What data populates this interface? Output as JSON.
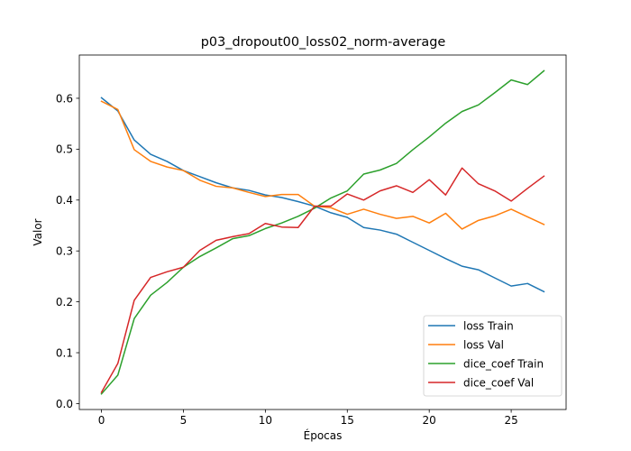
{
  "chart_data": {
    "type": "line",
    "title": "p03_dropout00_loss02_norm-average",
    "xlabel": "Épocas",
    "ylabel": "Valor",
    "xlim": [
      -1.35,
      28.35
    ],
    "ylim": [
      -0.0116,
      0.685
    ],
    "xticks": [
      0,
      5,
      10,
      15,
      20,
      25
    ],
    "xtick_labels": [
      "0",
      "5",
      "10",
      "15",
      "20",
      "25"
    ],
    "yticks": [
      0.0,
      0.1,
      0.2,
      0.3,
      0.4,
      0.5,
      0.6
    ],
    "ytick_labels": [
      "0.0",
      "0.1",
      "0.2",
      "0.3",
      "0.4",
      "0.5",
      "0.6"
    ],
    "grid": false,
    "legend_position": "lower right",
    "x": [
      0,
      1,
      2,
      3,
      4,
      5,
      6,
      7,
      8,
      9,
      10,
      11,
      12,
      13,
      14,
      15,
      16,
      17,
      18,
      19,
      20,
      21,
      22,
      23,
      24,
      25,
      26,
      27
    ],
    "series": [
      {
        "name": "loss Train",
        "color": "#1f77b4",
        "values": [
          0.601,
          0.575,
          0.518,
          0.49,
          0.476,
          0.458,
          0.446,
          0.434,
          0.424,
          0.419,
          0.41,
          0.405,
          0.397,
          0.388,
          0.375,
          0.366,
          0.346,
          0.341,
          0.333,
          0.317,
          0.301,
          0.285,
          0.27,
          0.263,
          0.247,
          0.231,
          0.236,
          0.22
        ]
      },
      {
        "name": "loss Val",
        "color": "#ff7f0e",
        "values": [
          0.594,
          0.578,
          0.499,
          0.476,
          0.465,
          0.458,
          0.439,
          0.427,
          0.424,
          0.415,
          0.407,
          0.411,
          0.411,
          0.388,
          0.385,
          0.372,
          0.382,
          0.372,
          0.364,
          0.368,
          0.355,
          0.374,
          0.343,
          0.36,
          0.369,
          0.382,
          0.367,
          0.352
        ]
      },
      {
        "name": "dice_coef Train",
        "color": "#2ca02c",
        "values": [
          0.019,
          0.056,
          0.167,
          0.213,
          0.238,
          0.268,
          0.289,
          0.306,
          0.324,
          0.33,
          0.344,
          0.355,
          0.368,
          0.384,
          0.404,
          0.418,
          0.451,
          0.459,
          0.472,
          0.499,
          0.524,
          0.551,
          0.574,
          0.587,
          0.611,
          0.636,
          0.627,
          0.654
        ]
      },
      {
        "name": "dice_coef Val",
        "color": "#d62728",
        "values": [
          0.022,
          0.079,
          0.203,
          0.248,
          0.259,
          0.268,
          0.301,
          0.321,
          0.328,
          0.334,
          0.354,
          0.347,
          0.346,
          0.388,
          0.388,
          0.412,
          0.4,
          0.418,
          0.428,
          0.415,
          0.44,
          0.41,
          0.463,
          0.432,
          0.418,
          0.398,
          0.423,
          0.447
        ]
      }
    ]
  }
}
